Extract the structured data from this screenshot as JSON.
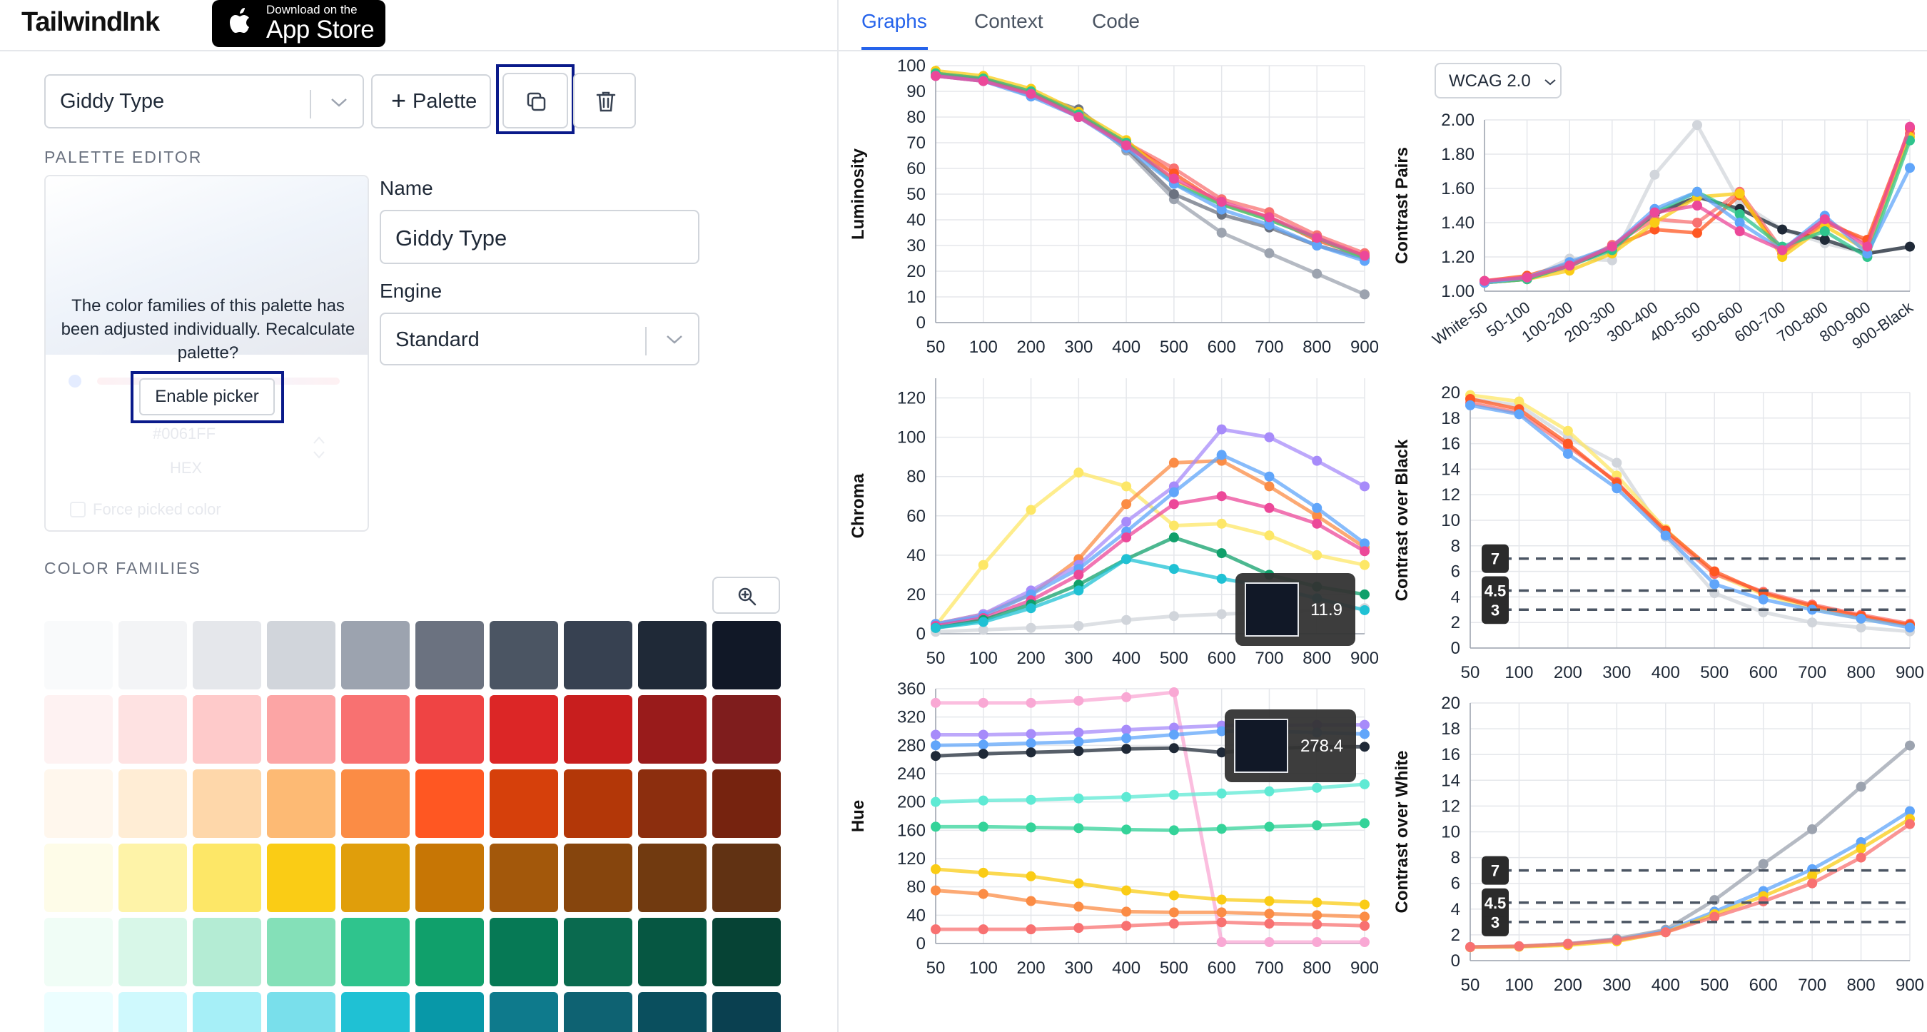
{
  "app": {
    "logo": "TailwindInk",
    "appstore_line1": "Download on the",
    "appstore_line2": "App Store"
  },
  "toolbar": {
    "palette_select": "Giddy Type",
    "add_palette_label": "Palette",
    "add_palette_plus": "+"
  },
  "palette_editor": {
    "heading": "PALETTE EDITOR",
    "message": "The color families of this palette has been adjusted individually. Recalculate palette?",
    "enable_picker": "Enable picker",
    "faded_hex": "#0061FF",
    "faded_hex_label": "HEX",
    "faded_force": "Force picked color"
  },
  "form": {
    "name_label": "Name",
    "name_value": "Giddy Type",
    "engine_label": "Engine",
    "engine_value": "Standard"
  },
  "color_families": {
    "heading": "COLOR FAMILIES",
    "rows": [
      [
        "#f9fafb",
        "#f3f4f6",
        "#e5e7eb",
        "#d1d5db",
        "#9ca3af",
        "#6b7280",
        "#4b5563",
        "#374151",
        "#1f2937",
        "#111827"
      ],
      [
        "#fef2f2",
        "#fee2e2",
        "#fecaca",
        "#fca5a5",
        "#f87171",
        "#ef4444",
        "#dc2626",
        "#c81e1e",
        "#991b1b",
        "#7f1d1d"
      ],
      [
        "#fff7ed",
        "#ffedd5",
        "#fed7aa",
        "#fdba74",
        "#fb8c45",
        "#ff5722",
        "#d6400b",
        "#b33708",
        "#8c2e0e",
        "#76230f"
      ],
      [
        "#fefce8",
        "#fef3a8",
        "#fde767",
        "#facc15",
        "#e09e0b",
        "#c77605",
        "#a3580b",
        "#86450d",
        "#713a10",
        "#613213"
      ],
      [
        "#f0fdf6",
        "#d8f7e8",
        "#b4ecd4",
        "#84e0b8",
        "#2fc48d",
        "#10a06b",
        "#067955",
        "#0a6a4f",
        "#065742",
        "#064335"
      ],
      [
        "#ecfeff",
        "#cff9fd",
        "#a6eff7",
        "#79dfeb",
        "#1fc1d4",
        "#0898a8",
        "#0e7a8c",
        "#0e6272",
        "#0a4f5e",
        "#0a4050"
      ]
    ]
  },
  "tabs": [
    {
      "label": "Graphs"
    },
    {
      "label": "Context"
    },
    {
      "label": "Code"
    }
  ],
  "wcag_select": "WCAG 2.0",
  "tooltips": {
    "chroma": "11.9",
    "hue": "278.4"
  },
  "contrast_markers": [
    "7",
    "4.5",
    "3"
  ],
  "chart_data": [
    {
      "type": "line",
      "title": "",
      "ylabel": "Luminosity",
      "xlabel": "",
      "categories": [
        "50",
        "100",
        "200",
        "300",
        "400",
        "500",
        "600",
        "700",
        "800",
        "900"
      ],
      "yticks": [
        0,
        10,
        20,
        30,
        40,
        50,
        60,
        70,
        80,
        90,
        100
      ],
      "ylim": [
        0,
        100
      ],
      "grid": true,
      "series": [
        {
          "color": "#9ca3af",
          "values": [
            97,
            95,
            88,
            82,
            67,
            48,
            35,
            27,
            19,
            11
          ]
        },
        {
          "color": "#6b7280",
          "values": [
            97,
            95,
            89,
            83,
            68,
            50,
            42,
            37,
            30,
            25
          ]
        },
        {
          "color": "#f87171",
          "values": [
            96,
            94,
            89,
            80,
            70,
            60,
            48,
            43,
            34,
            27
          ]
        },
        {
          "color": "#ff5722",
          "values": [
            97,
            95,
            90,
            81,
            70,
            58,
            46,
            41,
            32,
            26
          ]
        },
        {
          "color": "#facc15",
          "values": [
            98,
            96,
            91,
            82,
            71,
            55,
            46,
            40,
            33,
            25
          ]
        },
        {
          "color": "#2fc48d",
          "values": [
            97,
            95,
            90,
            81,
            70,
            54,
            46,
            40,
            33,
            25
          ]
        },
        {
          "color": "#60a5fa",
          "values": [
            96,
            94,
            88,
            80,
            68,
            54,
            44,
            38,
            30,
            24
          ]
        },
        {
          "color": "#ec4899",
          "values": [
            96,
            94,
            89,
            80,
            69,
            56,
            47,
            41,
            33,
            26
          ]
        }
      ]
    },
    {
      "type": "line",
      "title": "",
      "ylabel": "Contrast Pairs",
      "xlabel": "",
      "categories": [
        "White-50",
        "50-100",
        "100-200",
        "200-300",
        "300-400",
        "400-500",
        "500-600",
        "600-700",
        "700-800",
        "800-900",
        "900-Black"
      ],
      "yticks": [
        "1.00",
        "1.20",
        "1.40",
        "1.60",
        "1.80",
        "2.00"
      ],
      "ylim": [
        1.0,
        2.0
      ],
      "grid": true,
      "series": [
        {
          "color": "#d1d5db",
          "values": [
            1.06,
            1.07,
            1.19,
            1.18,
            1.68,
            1.97,
            1.52,
            1.36,
            1.28,
            1.22,
            1.26
          ]
        },
        {
          "color": "#1f2937",
          "values": [
            1.05,
            1.07,
            1.15,
            1.25,
            1.45,
            1.55,
            1.48,
            1.36,
            1.3,
            1.22,
            1.26
          ]
        },
        {
          "color": "#f87171",
          "values": [
            1.05,
            1.08,
            1.14,
            1.27,
            1.42,
            1.4,
            1.58,
            1.24,
            1.42,
            1.28,
            1.92
          ]
        },
        {
          "color": "#ff5722",
          "values": [
            1.06,
            1.09,
            1.16,
            1.26,
            1.36,
            1.34,
            1.56,
            1.22,
            1.4,
            1.3,
            1.95
          ]
        },
        {
          "color": "#facc15",
          "values": [
            1.05,
            1.07,
            1.12,
            1.22,
            1.4,
            1.55,
            1.57,
            1.2,
            1.38,
            1.24,
            1.9
          ]
        },
        {
          "color": "#2fc48d",
          "values": [
            1.05,
            1.07,
            1.15,
            1.24,
            1.46,
            1.58,
            1.45,
            1.26,
            1.35,
            1.2,
            1.88
          ]
        },
        {
          "color": "#60a5fa",
          "values": [
            1.05,
            1.08,
            1.17,
            1.26,
            1.48,
            1.58,
            1.4,
            1.24,
            1.44,
            1.22,
            1.72
          ]
        },
        {
          "color": "#ec4899",
          "values": [
            1.06,
            1.08,
            1.15,
            1.26,
            1.46,
            1.5,
            1.35,
            1.24,
            1.42,
            1.26,
            1.96
          ]
        }
      ]
    },
    {
      "type": "line",
      "title": "",
      "ylabel": "Chroma",
      "xlabel": "",
      "categories": [
        "50",
        "100",
        "200",
        "300",
        "400",
        "500",
        "600",
        "700",
        "800",
        "900"
      ],
      "yticks": [
        0,
        20,
        40,
        60,
        80,
        100,
        120
      ],
      "ylim": [
        0,
        130
      ],
      "grid": true,
      "series": [
        {
          "color": "#d1d5db",
          "values": [
            1,
            2,
            3,
            4,
            7,
            9,
            10,
            11,
            12,
            13
          ]
        },
        {
          "color": "#fde767",
          "values": [
            4,
            35,
            63,
            82,
            75,
            55,
            56,
            50,
            40,
            35
          ]
        },
        {
          "color": "#fb8c45",
          "values": [
            5,
            10,
            20,
            38,
            66,
            87,
            88,
            75,
            60,
            44
          ]
        },
        {
          "color": "#a78bfa",
          "values": [
            5,
            10,
            22,
            35,
            57,
            75,
            104,
            100,
            88,
            75
          ]
        },
        {
          "color": "#60a5fa",
          "values": [
            5,
            9,
            20,
            33,
            52,
            72,
            91,
            80,
            64,
            46
          ]
        },
        {
          "color": "#ec4899",
          "values": [
            4,
            8,
            17,
            30,
            49,
            66,
            70,
            64,
            56,
            42
          ]
        },
        {
          "color": "#10a06b",
          "values": [
            3,
            7,
            15,
            25,
            38,
            49,
            41,
            30,
            24,
            20
          ]
        },
        {
          "color": "#1fc1d4",
          "values": [
            3,
            6,
            13,
            22,
            38,
            33,
            28,
            24,
            18,
            12
          ]
        }
      ]
    },
    {
      "type": "line",
      "title": "",
      "ylabel": "Contrast over Black",
      "xlabel": "",
      "categories": [
        "50",
        "100",
        "200",
        "300",
        "400",
        "500",
        "600",
        "700",
        "800",
        "900"
      ],
      "yticks": [
        0,
        2,
        4,
        6,
        8,
        10,
        12,
        14,
        16,
        18,
        20
      ],
      "ylim": [
        0,
        20
      ],
      "grid": true,
      "series": [
        {
          "color": "#d1d5db",
          "values": [
            19.5,
            19.0,
            16.5,
            14.5,
            8.7,
            4.3,
            2.8,
            2.0,
            1.6,
            1.3
          ]
        },
        {
          "color": "#fde767",
          "values": [
            19.8,
            19.3,
            17.0,
            13.5,
            9.3,
            5.8,
            4.2,
            3.1,
            2.3,
            1.8
          ]
        },
        {
          "color": "#f87171",
          "values": [
            19.2,
            18.4,
            15.8,
            13.0,
            9.0,
            5.8,
            4.4,
            3.4,
            2.6,
            1.9
          ]
        },
        {
          "color": "#ff5722",
          "values": [
            19.5,
            18.7,
            16.0,
            12.9,
            9.2,
            6.0,
            4.3,
            3.3,
            2.5,
            1.8
          ]
        },
        {
          "color": "#60a5fa",
          "values": [
            19.0,
            18.3,
            15.2,
            12.5,
            8.8,
            5.0,
            3.8,
            3.0,
            2.3,
            1.6
          ]
        }
      ]
    },
    {
      "type": "line",
      "title": "",
      "ylabel": "Hue",
      "xlabel": "",
      "categories": [
        "50",
        "100",
        "200",
        "300",
        "400",
        "500",
        "600",
        "700",
        "800",
        "900"
      ],
      "yticks": [
        0,
        40,
        80,
        120,
        160,
        200,
        240,
        280,
        320,
        360
      ],
      "ylim": [
        0,
        360
      ],
      "grid": true,
      "series": [
        {
          "color": "#f9a8d4",
          "values": [
            340,
            340,
            340,
            343,
            348,
            355,
            2,
            2,
            2,
            2
          ]
        },
        {
          "color": "#a78bfa",
          "values": [
            295,
            295,
            296,
            298,
            302,
            305,
            308,
            308,
            309,
            309
          ]
        },
        {
          "color": "#60a5fa",
          "values": [
            280,
            281,
            283,
            285,
            290,
            295,
            300,
            300,
            298,
            296
          ]
        },
        {
          "color": "#1f2937",
          "values": [
            265,
            268,
            270,
            272,
            275,
            276,
            270,
            275,
            278,
            278
          ]
        },
        {
          "color": "#5eead4",
          "values": [
            200,
            202,
            203,
            205,
            207,
            210,
            212,
            215,
            220,
            225
          ]
        },
        {
          "color": "#34d399",
          "values": [
            165,
            165,
            164,
            163,
            161,
            160,
            162,
            165,
            167,
            170
          ]
        },
        {
          "color": "#facc15",
          "values": [
            105,
            100,
            95,
            85,
            75,
            68,
            62,
            60,
            58,
            55
          ]
        },
        {
          "color": "#fb8c45",
          "values": [
            75,
            70,
            60,
            52,
            45,
            44,
            44,
            42,
            40,
            38
          ]
        },
        {
          "color": "#f87171",
          "values": [
            20,
            20,
            20,
            22,
            25,
            28,
            30,
            28,
            27,
            25
          ]
        }
      ]
    },
    {
      "type": "line",
      "title": "",
      "ylabel": "Contrast over White",
      "xlabel": "",
      "categories": [
        "50",
        "100",
        "200",
        "300",
        "400",
        "500",
        "600",
        "700",
        "800",
        "900"
      ],
      "yticks": [
        0,
        2,
        4,
        6,
        8,
        10,
        12,
        14,
        16,
        18,
        20
      ],
      "ylim": [
        0,
        20
      ],
      "grid": true,
      "series": [
        {
          "color": "#9ca3af",
          "values": [
            1.05,
            1.1,
            1.3,
            1.7,
            2.4,
            4.7,
            7.5,
            10.2,
            13.5,
            16.7
          ]
        },
        {
          "color": "#60a5fa",
          "values": [
            1.05,
            1.1,
            1.3,
            1.6,
            2.3,
            3.8,
            5.4,
            7.1,
            9.2,
            11.6
          ]
        },
        {
          "color": "#facc15",
          "values": [
            1.04,
            1.08,
            1.2,
            1.5,
            2.2,
            3.6,
            5.0,
            6.6,
            8.7,
            11.0
          ]
        },
        {
          "color": "#f87171",
          "values": [
            1.06,
            1.12,
            1.3,
            1.6,
            2.2,
            3.4,
            4.6,
            6.0,
            8.0,
            10.6
          ]
        }
      ]
    }
  ]
}
